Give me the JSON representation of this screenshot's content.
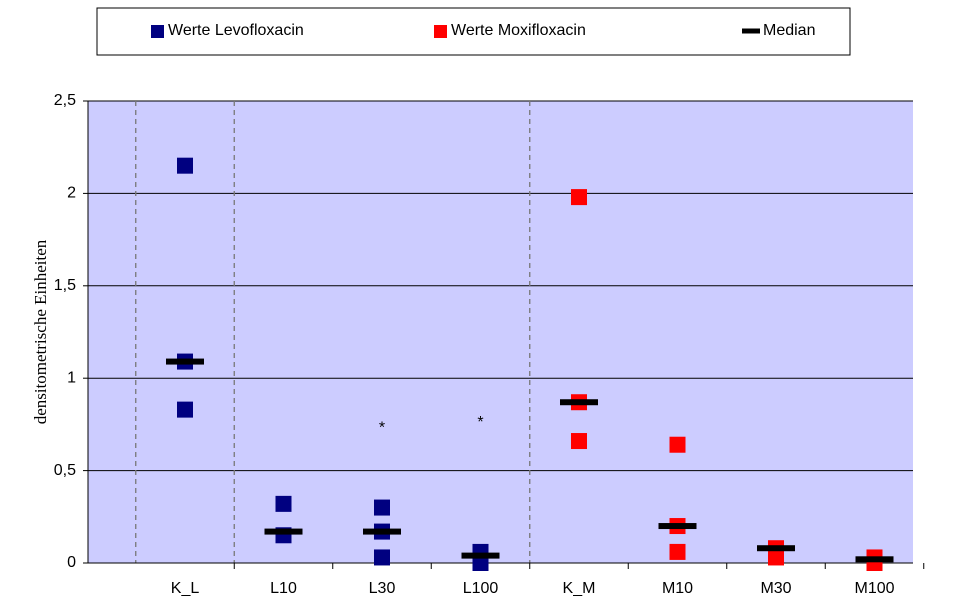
{
  "chart_data": {
    "type": "scatter",
    "ylabel": "densitometrische Einheiten",
    "categories": [
      "K_L",
      "L10",
      "L30",
      "L100",
      "K_M",
      "M10",
      "M30",
      "M100"
    ],
    "series": [
      {
        "name": "Werte Levofloxacin",
        "color": "#000080",
        "marker": "square",
        "values": [
          [
            2.15,
            1.09,
            0.83
          ],
          [
            0.32,
            0.15
          ],
          [
            0.3,
            0.17,
            0.03
          ],
          [
            0.06,
            0.0
          ],
          null,
          null,
          null,
          null
        ]
      },
      {
        "name": "Werte Moxifloxacin",
        "color": "#ff0000",
        "marker": "square",
        "values": [
          null,
          null,
          null,
          null,
          [
            1.98,
            0.87,
            0.66
          ],
          [
            0.64,
            0.2,
            0.06
          ],
          [
            0.08,
            0.03
          ],
          [
            0.03,
            0.0
          ]
        ]
      },
      {
        "name": "Median",
        "color": "#000000",
        "marker": "dash",
        "values": [
          1.09,
          0.17,
          0.17,
          0.04,
          0.87,
          0.2,
          0.08,
          0.02
        ]
      }
    ],
    "annotations": [
      {
        "text": "*",
        "category": "L30",
        "y": 0.73
      },
      {
        "text": "*",
        "category": "L100",
        "y": 0.76
      }
    ],
    "ylim": [
      0,
      2.5
    ],
    "yticks": [
      0,
      {
        "value": 0.5,
        "label": "0,5"
      },
      1,
      {
        "value": 1.5,
        "label": "1,5"
      },
      2,
      {
        "value": 2.5,
        "label": "2,5"
      }
    ],
    "grid": true,
    "background": "#ccccff",
    "legend": "top"
  }
}
